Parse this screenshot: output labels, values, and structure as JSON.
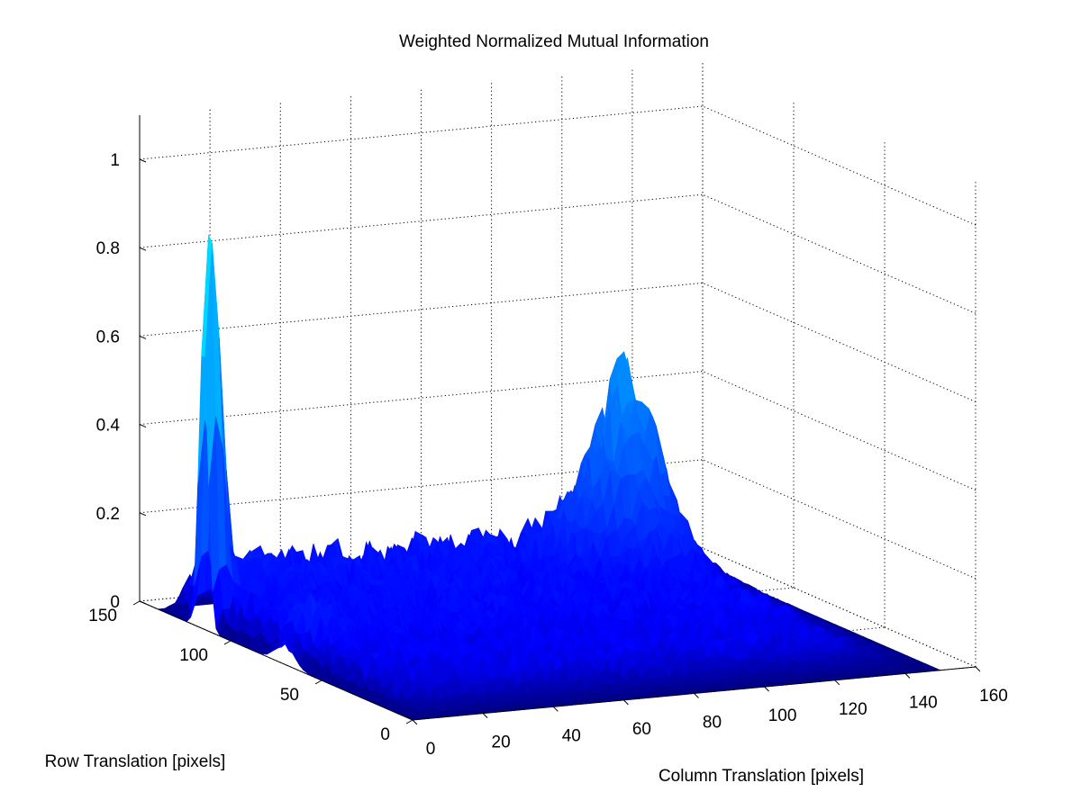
{
  "chart_data": {
    "type": "surface",
    "title": "Weighted Normalized Mutual Information",
    "xlabel": "Column Translation [pixels]",
    "ylabel": "Row Translation [pixels]",
    "zlabel": "",
    "x_ticks": [
      0,
      20,
      40,
      60,
      80,
      100,
      120,
      140,
      160
    ],
    "y_ticks": [
      0,
      50,
      100,
      150
    ],
    "z_ticks": [
      0,
      0.2,
      0.4,
      0.6,
      0.8,
      1
    ],
    "x_tick_labels": [
      "0",
      "20",
      "40",
      "60",
      "80",
      "100",
      "120",
      "140",
      "160"
    ],
    "y_tick_labels": [
      "0",
      "50",
      "100",
      "150"
    ],
    "z_tick_labels": [
      "0",
      "0.2",
      "0.4",
      "0.6",
      "0.8",
      "1"
    ],
    "xlim": [
      0,
      160
    ],
    "ylim": [
      0,
      150
    ],
    "zlim": [
      0,
      1.1
    ],
    "grid": true,
    "colormap": {
      "low": "#000080",
      "mid": "#0000ff",
      "high": "#00ffff"
    },
    "surface": {
      "x_range": [
        0,
        150
      ],
      "y_range": [
        0,
        140
      ],
      "baseline": 0.05,
      "noise_amplitude": 0.05,
      "features": [
        {
          "kind": "spike",
          "x": 2,
          "y": 115,
          "height": 0.92,
          "width": 2.5
        },
        {
          "kind": "peak",
          "x": 118,
          "y": 112,
          "height": 0.38,
          "width": 9
        },
        {
          "kind": "peak",
          "x": 5,
          "y": 70,
          "height": 0.07,
          "width": 5
        }
      ]
    }
  }
}
